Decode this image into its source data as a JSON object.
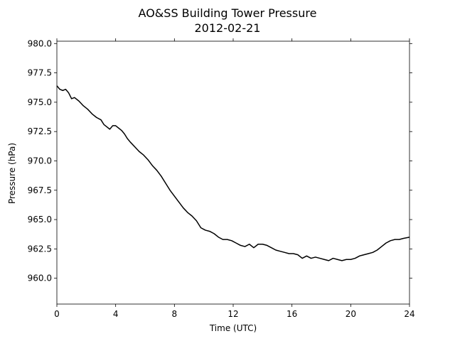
{
  "chart_data": {
    "type": "line",
    "title": "AO&SS Building Tower Pressure",
    "subtitle": "2012-02-21",
    "xlabel": "Time (UTC)",
    "ylabel": "Pressure (hPa)",
    "xlim": [
      0,
      24
    ],
    "ylim": [
      957.8,
      980.2
    ],
    "xticks": [
      0,
      4,
      8,
      12,
      16,
      20,
      24
    ],
    "xtick_labels": [
      "0",
      "4",
      "8",
      "12",
      "16",
      "20",
      "24"
    ],
    "yticks": [
      960.0,
      962.5,
      965.0,
      967.5,
      970.0,
      972.5,
      975.0,
      977.5,
      980.0
    ],
    "ytick_labels": [
      "960.0",
      "962.5",
      "965.0",
      "967.5",
      "970.0",
      "972.5",
      "975.0",
      "977.5",
      "980.0"
    ],
    "grid": false,
    "line_color": "#000000",
    "series": [
      {
        "x": [
          0.0,
          0.2,
          0.4,
          0.6,
          0.8,
          1.0,
          1.2,
          1.5,
          1.8,
          2.1,
          2.4,
          2.7,
          3.0,
          3.2,
          3.4,
          3.6,
          3.8,
          4.0,
          4.2,
          4.4,
          4.6,
          4.8,
          5.0,
          5.3,
          5.6,
          5.9,
          6.2,
          6.5,
          6.8,
          7.1,
          7.4,
          7.7,
          8.0,
          8.3,
          8.6,
          8.9,
          9.2,
          9.5,
          9.8,
          10.1,
          10.4,
          10.7,
          11.0,
          11.3,
          11.6,
          11.9,
          12.2,
          12.5,
          12.8,
          13.1,
          13.4,
          13.7,
          14.0,
          14.3,
          14.6,
          14.9,
          15.2,
          15.5,
          15.8,
          16.1,
          16.4,
          16.7,
          17.0,
          17.3,
          17.6,
          17.9,
          18.2,
          18.5,
          18.8,
          19.1,
          19.4,
          19.7,
          20.0,
          20.3,
          20.6,
          20.9,
          21.2,
          21.5,
          21.8,
          22.1,
          22.4,
          22.7,
          23.0,
          23.3,
          23.6,
          24.0
        ],
        "y": [
          976.4,
          976.1,
          976.0,
          976.1,
          975.8,
          975.3,
          975.4,
          975.1,
          974.7,
          974.4,
          974.0,
          973.7,
          973.5,
          973.1,
          972.9,
          972.7,
          973.0,
          973.0,
          972.8,
          972.6,
          972.3,
          971.9,
          971.6,
          971.2,
          970.8,
          970.5,
          970.1,
          969.6,
          969.2,
          968.7,
          968.1,
          967.5,
          967.0,
          966.5,
          966.0,
          965.6,
          965.3,
          964.9,
          964.3,
          964.1,
          964.0,
          963.8,
          963.5,
          963.3,
          963.3,
          963.2,
          963.0,
          962.8,
          962.7,
          962.9,
          962.6,
          962.9,
          962.9,
          962.8,
          962.6,
          962.4,
          962.3,
          962.2,
          962.1,
          962.1,
          962.0,
          961.7,
          961.9,
          961.7,
          961.8,
          961.7,
          961.6,
          961.5,
          961.7,
          961.6,
          961.5,
          961.6,
          961.6,
          961.7,
          961.9,
          962.0,
          962.1,
          962.2,
          962.4,
          962.7,
          963.0,
          963.2,
          963.3,
          963.3,
          963.4,
          963.5
        ]
      }
    ]
  }
}
